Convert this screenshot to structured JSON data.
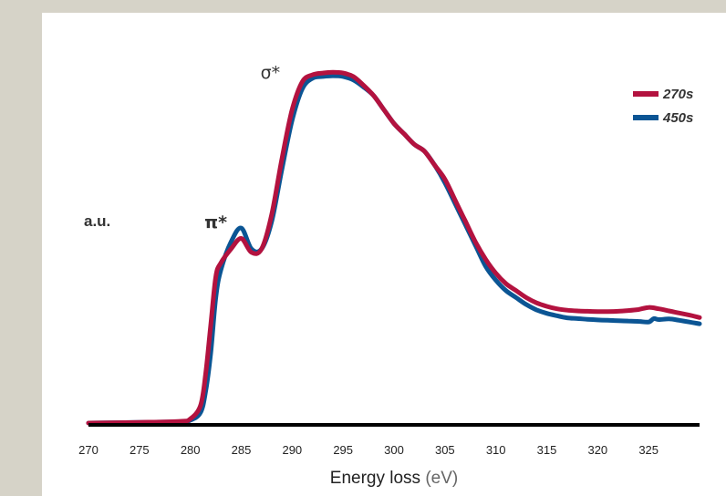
{
  "chart_data": {
    "type": "line",
    "title": "",
    "xlabel": "Energy loss",
    "xlabel_unit": "(eV)",
    "ylabel": "a.u.",
    "xlim": [
      270,
      330
    ],
    "ylim": [
      0,
      1.0
    ],
    "xticks": [
      270,
      275,
      280,
      285,
      290,
      295,
      300,
      305,
      310,
      315,
      320,
      325
    ],
    "grid": false,
    "legend_position": "top-right",
    "colors": {
      "270s": "#b3123f",
      "450s": "#0b5594",
      "axis": "#000000",
      "frame": "#d6d3c8"
    },
    "annotations": [
      {
        "text": "σ*",
        "x": 288.5,
        "y": 0.99
      },
      {
        "text": "π*",
        "x": 283.0,
        "y": 0.56
      }
    ],
    "series": [
      {
        "name": "270s",
        "x": [
          270,
          275,
          279,
          280,
          281,
          281.5,
          282,
          282.5,
          283,
          284,
          285,
          286,
          287,
          288,
          289,
          290,
          291,
          292,
          293,
          294,
          295,
          296,
          297,
          298,
          299,
          300,
          301,
          302,
          303,
          304,
          305,
          306,
          307,
          308,
          309,
          310,
          311,
          312,
          313,
          314,
          315,
          316,
          317,
          318,
          319,
          320,
          321,
          322,
          323,
          324,
          325,
          326,
          327,
          328,
          329,
          330
        ],
        "y": [
          0.0,
          0.002,
          0.005,
          0.012,
          0.05,
          0.14,
          0.28,
          0.42,
          0.46,
          0.5,
          0.53,
          0.49,
          0.5,
          0.6,
          0.76,
          0.9,
          0.98,
          1.0,
          1.005,
          1.007,
          1.005,
          0.995,
          0.97,
          0.94,
          0.9,
          0.86,
          0.83,
          0.8,
          0.78,
          0.74,
          0.7,
          0.64,
          0.58,
          0.52,
          0.47,
          0.43,
          0.4,
          0.38,
          0.36,
          0.345,
          0.335,
          0.328,
          0.324,
          0.322,
          0.321,
          0.32,
          0.32,
          0.321,
          0.323,
          0.326,
          0.332,
          0.328,
          0.322,
          0.316,
          0.31,
          0.303
        ]
      },
      {
        "name": "450s",
        "x": [
          270,
          275,
          279,
          280,
          281,
          281.5,
          282,
          282.5,
          283,
          284,
          285,
          286,
          287,
          288,
          289,
          290,
          291,
          292,
          293,
          294,
          295,
          296,
          297,
          298,
          299,
          300,
          301,
          302,
          303,
          304,
          305,
          306,
          307,
          308,
          309,
          310,
          311,
          312,
          313,
          314,
          315,
          316,
          317,
          318,
          319,
          320,
          321,
          322,
          323,
          324,
          325,
          325.5,
          326,
          327,
          328,
          329,
          330
        ],
        "y": [
          0.0,
          0.002,
          0.004,
          0.008,
          0.03,
          0.09,
          0.2,
          0.36,
          0.44,
          0.52,
          0.56,
          0.5,
          0.5,
          0.58,
          0.73,
          0.87,
          0.96,
          0.99,
          0.995,
          0.997,
          0.995,
          0.985,
          0.965,
          0.94,
          0.9,
          0.86,
          0.83,
          0.8,
          0.78,
          0.74,
          0.69,
          0.63,
          0.57,
          0.51,
          0.45,
          0.41,
          0.38,
          0.36,
          0.34,
          0.325,
          0.315,
          0.308,
          0.302,
          0.3,
          0.298,
          0.296,
          0.295,
          0.294,
          0.293,
          0.292,
          0.29,
          0.3,
          0.297,
          0.299,
          0.295,
          0.29,
          0.285
        ]
      }
    ]
  }
}
